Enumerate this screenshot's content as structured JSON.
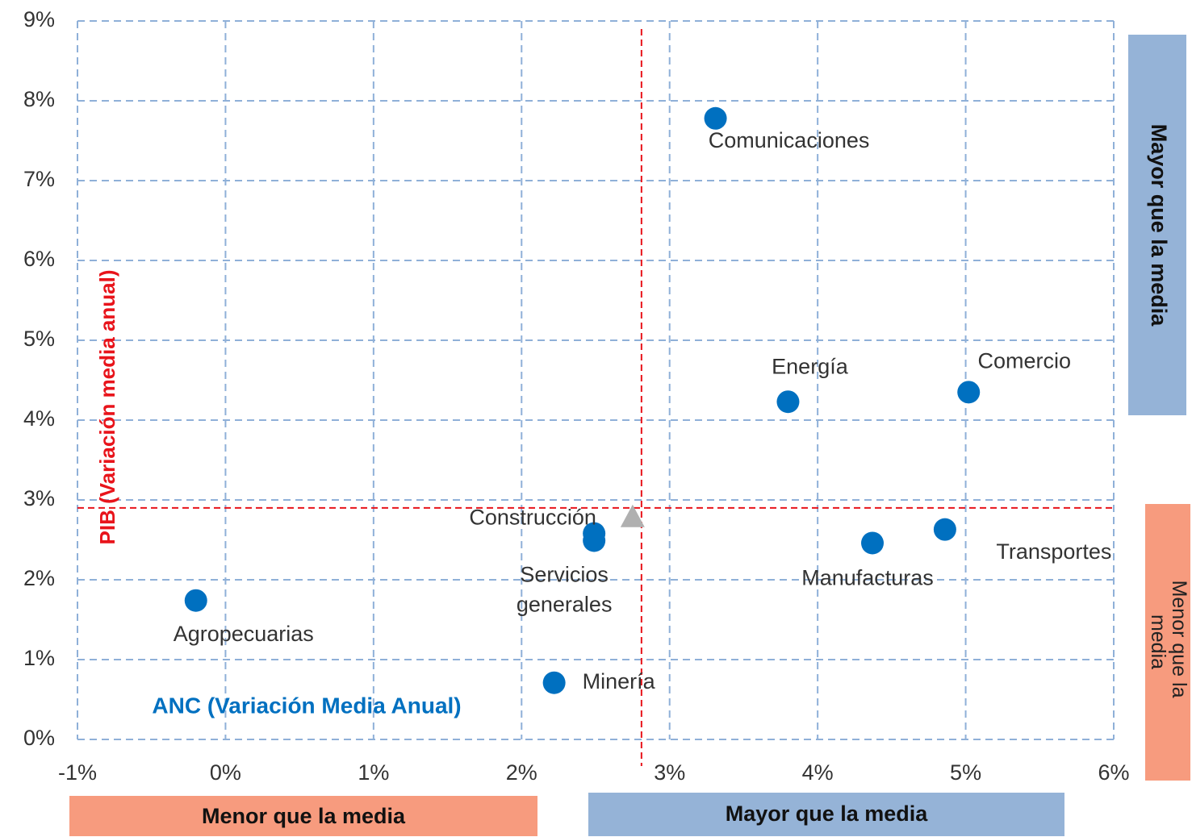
{
  "chart_data": {
    "type": "scatter",
    "x_label": "ANC (Variación Media Anual)",
    "y_label": "PIB (Variación media anual)",
    "x": [
      3.31,
      3.8,
      5.02,
      4.86,
      4.37,
      2.49,
      2.49,
      -0.2,
      2.22
    ],
    "series": [
      {
        "color": "#0070c0",
        "values": [
          7.78,
          4.23,
          4.35,
          2.63,
          2.46,
          2.58,
          2.49,
          1.74,
          0.71
        ]
      }
    ],
    "point_labels": [
      "Comunicaciones",
      "Energía",
      "Comercio",
      "Transportes",
      "Manufacturas",
      "Construcción",
      [
        "Servicios",
        "generales"
      ],
      "Agropecuarias",
      "Minería"
    ],
    "mean_point": {
      "x": 2.75,
      "y": 2.78,
      "color": "#b0b0b0"
    },
    "reference_lines": {
      "x": 2.81,
      "y": 2.9,
      "color": "#e8141b"
    },
    "xlim": [
      -1,
      6
    ],
    "ylim": [
      0,
      9
    ],
    "xticks": [
      {
        "value": -1,
        "label": "-1%"
      },
      {
        "value": 0,
        "label": "0%"
      },
      {
        "value": 1,
        "label": "1%"
      },
      {
        "value": 2,
        "label": "2%"
      },
      {
        "value": 3,
        "label": "3%"
      },
      {
        "value": 4,
        "label": "4%"
      },
      {
        "value": 5,
        "label": "5%"
      },
      {
        "value": 6,
        "label": "6%"
      }
    ],
    "yticks": [
      {
        "value": 0,
        "label": "0%"
      },
      {
        "value": 1,
        "label": "1%"
      },
      {
        "value": 2,
        "label": "2%"
      },
      {
        "value": 3,
        "label": "3%"
      },
      {
        "value": 4,
        "label": "4%"
      },
      {
        "value": 5,
        "label": "5%"
      },
      {
        "value": 6,
        "label": "6%"
      },
      {
        "value": 7,
        "label": "7%"
      },
      {
        "value": 8,
        "label": "8%"
      },
      {
        "value": 9,
        "label": "9%"
      }
    ],
    "grid": true,
    "zones": {
      "x_below": "Menor que la media",
      "x_above": "Mayor que la media",
      "y_above": "Mayor que la media",
      "y_below": [
        "Menor que la",
        "media"
      ]
    }
  }
}
